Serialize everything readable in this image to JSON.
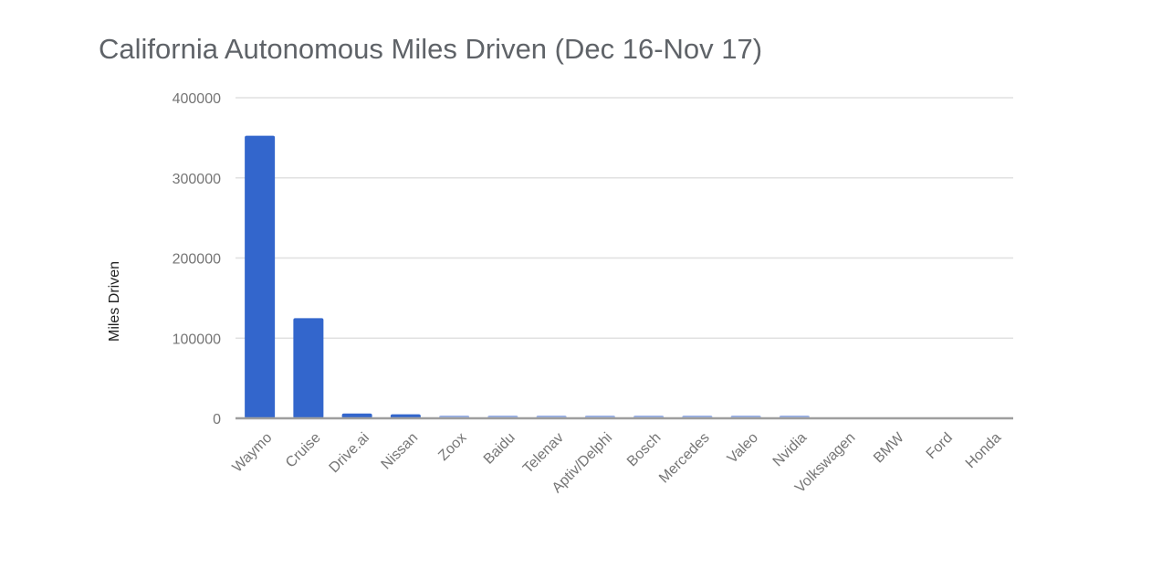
{
  "chart_data": {
    "type": "bar",
    "title": "California Autonomous Miles Driven (Dec 16-Nov 17)",
    "xlabel": "",
    "ylabel": "Miles Driven",
    "ylim": [
      0,
      400000
    ],
    "yticks": [
      0,
      100000,
      200000,
      300000,
      400000
    ],
    "ytick_labels": [
      "0",
      "100000",
      "200000",
      "300000",
      "400000"
    ],
    "grid": true,
    "legend": "none",
    "categories": [
      "Waymo",
      "Cruise",
      "Drive.ai",
      "Nissan",
      "Zoox",
      "Baidu",
      "Telenav",
      "Aptiv/Delphi",
      "Bosch",
      "Mercedes",
      "Valeo",
      "Nvidia",
      "Volkswagen",
      "BMW",
      "Ford",
      "Honda"
    ],
    "values": [
      352545,
      125000,
      6000,
      5000,
      2244,
      1971,
      1824,
      1811,
      1454,
      1087,
      552,
      505,
      0,
      0,
      0,
      0
    ],
    "colors": {
      "bar": "#3366cc",
      "bar_small": "#99b0e6",
      "grid": "#e0e0e0",
      "baseline": "#9e9e9e",
      "title": "#5f6368",
      "tick_text": "#757575",
      "axis_label": "#222222"
    }
  }
}
